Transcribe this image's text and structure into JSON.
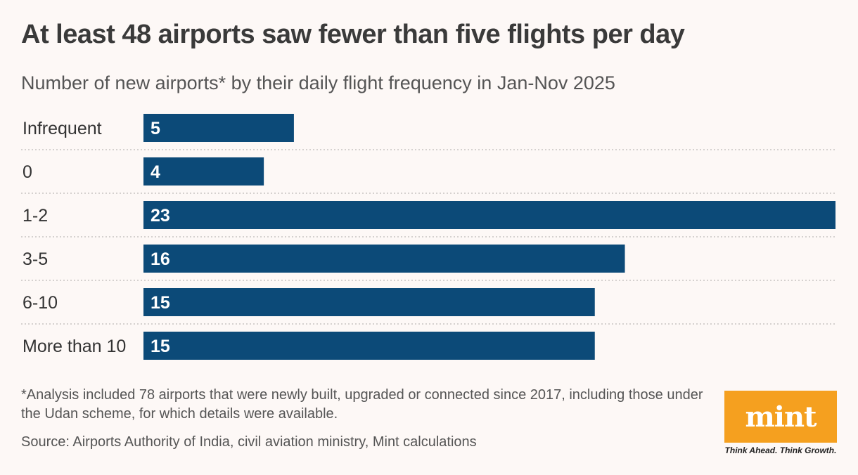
{
  "header": {
    "title": "At least 48 airports saw fewer than five flights per day",
    "subtitle": "Number of new airports* by their daily flight frequency in Jan-Nov 2025"
  },
  "chart_data": {
    "type": "bar",
    "orientation": "horizontal",
    "categories": [
      "Infrequent",
      "0",
      "1-2",
      "3-5",
      "6-10",
      "More than 10"
    ],
    "values": [
      5,
      4,
      23,
      16,
      15,
      15
    ],
    "xlim": [
      0,
      23
    ],
    "bar_color": "#0c4a78",
    "data_labels": true,
    "grid": false
  },
  "footer": {
    "note": "*Analysis included 78 airports that were newly built, upgraded or connected since 2017, including those under the Udan scheme, for which details were available.",
    "source": "Source: Airports Authority of India, civil aviation ministry, Mint calculations"
  },
  "logo": {
    "text": "mint",
    "tagline": "Think Ahead. Think Growth.",
    "color": "#f5a01f"
  }
}
